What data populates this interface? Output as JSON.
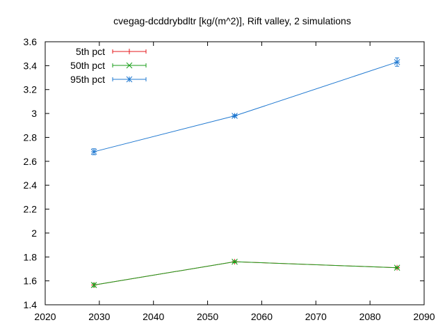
{
  "chart_data": {
    "type": "line",
    "title": "cvegag-dcddrybdltr [kg/(m^2)], Rift valley, 2 simulations",
    "xlabel": "",
    "ylabel": "",
    "xlim": [
      2020,
      2090
    ],
    "ylim": [
      1.4,
      3.6
    ],
    "x_ticks": [
      "2020",
      "2030",
      "2040",
      "2050",
      "2060",
      "2070",
      "2080",
      "2090"
    ],
    "y_ticks": [
      "1.4",
      "1.6",
      "1.8",
      "2",
      "2.2",
      "2.4",
      "2.6",
      "2.8",
      "3",
      "3.2",
      "3.4",
      "3.6"
    ],
    "grid": false,
    "legend_position": "top-left",
    "x": [
      2029,
      2055,
      2085
    ],
    "series": [
      {
        "name": "5th pct",
        "color": "#e41a1c",
        "marker": "plus",
        "values": [
          1.565,
          1.76,
          1.71
        ],
        "error": [
          0.0,
          0.0,
          0.0
        ]
      },
      {
        "name": "50th pct",
        "color": "#1a9e1a",
        "marker": "x",
        "values": [
          1.565,
          1.76,
          1.71
        ],
        "error": [
          0.015,
          0.008,
          0.008
        ]
      },
      {
        "name": "95th pct",
        "color": "#1f78d0",
        "marker": "star",
        "values": [
          2.68,
          2.98,
          3.43
        ],
        "error": [
          0.025,
          0.01,
          0.035
        ]
      }
    ]
  }
}
